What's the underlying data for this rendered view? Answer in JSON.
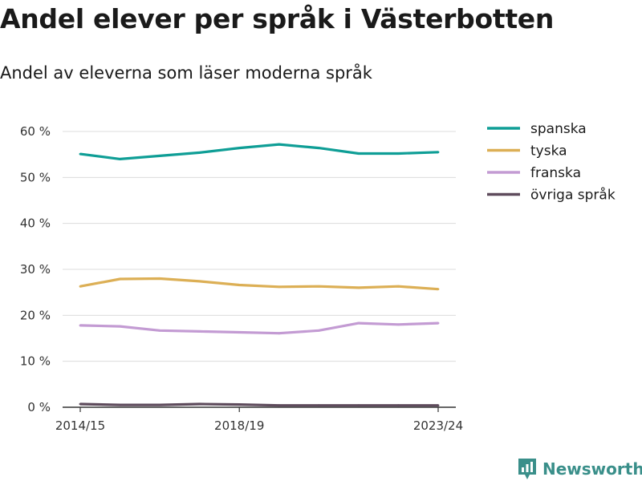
{
  "title": "Andel elever per språk i Västerbotten",
  "subtitle": "Andel av eleverna som läser moderna språk",
  "brand": "Newsworthy",
  "chart_data": {
    "type": "line",
    "title": "Andel elever per språk i Västerbotten",
    "subtitle": "Andel av eleverna som läser moderna språk",
    "xlabel": "",
    "ylabel": "",
    "x": [
      "2014/15",
      "2015/16",
      "2016/17",
      "2017/18",
      "2018/19",
      "2019/20",
      "2020/21",
      "2021/22",
      "2022/23",
      "2023/24"
    ],
    "x_tick_labels": [
      "2014/15",
      "2018/19",
      "2023/24"
    ],
    "ylim": [
      0,
      60
    ],
    "y_ticks": [
      0,
      10,
      20,
      30,
      40,
      50,
      60
    ],
    "y_tick_labels": [
      "0 %",
      "10 %",
      "20 %",
      "30 %",
      "40 %",
      "50 %",
      "60 %"
    ],
    "grid": true,
    "legend_position": "right",
    "series": [
      {
        "name": "spanska",
        "color": "#0f9e96",
        "values": [
          55.1,
          54.0,
          54.7,
          55.4,
          56.4,
          57.2,
          56.4,
          55.2,
          55.2,
          55.5
        ]
      },
      {
        "name": "tyska",
        "color": "#dcaf55",
        "values": [
          26.3,
          27.9,
          28.0,
          27.4,
          26.6,
          26.2,
          26.3,
          26.0,
          26.3,
          25.7
        ]
      },
      {
        "name": "franska",
        "color": "#c39bd3",
        "values": [
          17.8,
          17.6,
          16.7,
          16.5,
          16.3,
          16.1,
          16.7,
          18.3,
          18.0,
          18.3
        ]
      },
      {
        "name": "övriga språk",
        "color": "#5e4b5c",
        "values": [
          0.7,
          0.5,
          0.5,
          0.7,
          0.6,
          0.4,
          0.4,
          0.4,
          0.4,
          0.4
        ]
      }
    ]
  }
}
